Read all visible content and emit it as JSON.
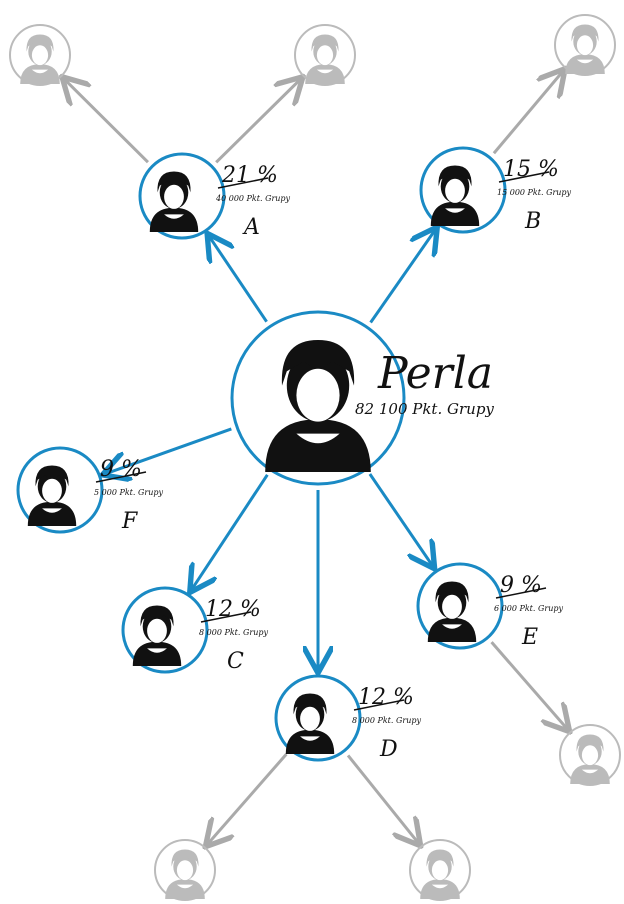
{
  "center": {
    "name": "Perla",
    "points": "82 100 Pkt. Grupy"
  },
  "nodes": [
    {
      "label": "A",
      "percent": "21 %",
      "points": "40 000 Pkt. Grupy"
    },
    {
      "label": "B",
      "percent": "15 %",
      "points": "15 000 Pkt. Grupy"
    },
    {
      "label": "F",
      "percent": "9 %",
      "points": "5 000 Pkt. Grupy"
    },
    {
      "label": "C",
      "percent": "12 %",
      "points": "8 000 Pkt. Grupy"
    },
    {
      "label": "D",
      "percent": "12 %",
      "points": "8 000 Pkt. Grupy"
    },
    {
      "label": "E",
      "percent": "9 %",
      "points": "6 000 Pkt. Grupy"
    }
  ]
}
